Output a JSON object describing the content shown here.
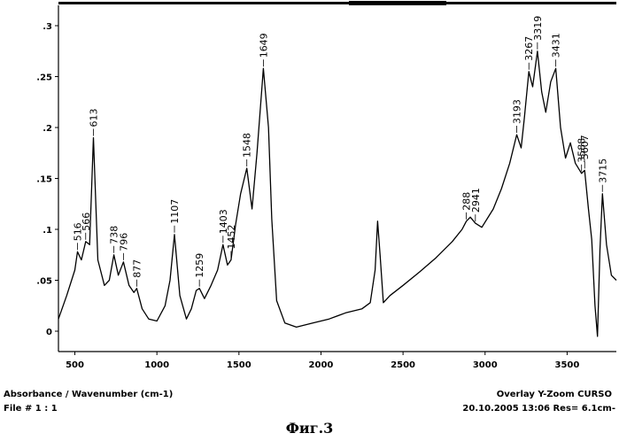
{
  "footer": {
    "axes_label": "Absorbance / Wavenumber (cm-1)",
    "file_label": "File # 1 : 1",
    "overlay_label": "Overlay Y-Zoom CURSO",
    "stamp_label": "20.10.2005  13:06  Res= 6.1cm-"
  },
  "caption": "Фиг.3",
  "chart_data": {
    "type": "line",
    "xlim": [
      400,
      3800
    ],
    "ylim": [
      -0.02,
      0.32
    ],
    "x_ticks": [
      500,
      1000,
      1500,
      2000,
      2500,
      3000,
      3500
    ],
    "x_tick_labels": [
      "500",
      "1000",
      "1500",
      "2000",
      "2500",
      "3000",
      "3500"
    ],
    "y_ticks": [
      0,
      0.05,
      0.1,
      0.15,
      0.2,
      0.25,
      0.3
    ],
    "y_tick_labels": [
      "0",
      ".05",
      ".1",
      ".15",
      ".2",
      ".25",
      ".3"
    ],
    "grid": false,
    "series": [
      {
        "x": [
          400,
          450,
          500,
          516,
          540,
          566,
          590,
          613,
          640,
          680,
          710,
          738,
          765,
          796,
          830,
          860,
          877,
          910,
          950,
          1000,
          1050,
          1080,
          1107,
          1140,
          1180,
          1210,
          1240,
          1259,
          1290,
          1330,
          1370,
          1403,
          1430,
          1452,
          1480,
          1510,
          1548,
          1580,
          1610,
          1649,
          1680,
          1700,
          1730,
          1780,
          1850,
          1950,
          2050,
          2150,
          2250,
          2300,
          2330,
          2345,
          2360,
          2380,
          2420,
          2500,
          2600,
          2700,
          2800,
          2860,
          2886,
          2910,
          2941,
          2980,
          3050,
          3100,
          3150,
          3193,
          3220,
          3240,
          3267,
          3290,
          3319,
          3345,
          3370,
          3400,
          3431,
          3460,
          3490,
          3520,
          3550,
          3588,
          3607,
          3630,
          3650,
          3670,
          3685,
          3700,
          3715,
          3740,
          3770,
          3800
        ],
        "y": [
          0.012,
          0.035,
          0.06,
          0.078,
          0.07,
          0.088,
          0.085,
          0.19,
          0.07,
          0.045,
          0.05,
          0.075,
          0.055,
          0.068,
          0.045,
          0.038,
          0.042,
          0.022,
          0.012,
          0.01,
          0.025,
          0.05,
          0.095,
          0.035,
          0.012,
          0.022,
          0.04,
          0.042,
          0.032,
          0.045,
          0.06,
          0.085,
          0.065,
          0.07,
          0.105,
          0.135,
          0.16,
          0.12,
          0.175,
          0.258,
          0.2,
          0.11,
          0.03,
          0.008,
          0.004,
          0.008,
          0.012,
          0.018,
          0.022,
          0.028,
          0.06,
          0.108,
          0.075,
          0.028,
          0.035,
          0.045,
          0.058,
          0.072,
          0.088,
          0.1,
          0.108,
          0.112,
          0.106,
          0.102,
          0.12,
          0.14,
          0.165,
          0.193,
          0.18,
          0.21,
          0.255,
          0.24,
          0.275,
          0.235,
          0.215,
          0.245,
          0.258,
          0.2,
          0.17,
          0.185,
          0.165,
          0.155,
          0.158,
          0.12,
          0.09,
          0.025,
          -0.005,
          0.08,
          0.135,
          0.085,
          0.055,
          0.05
        ]
      }
    ],
    "annotations": [
      {
        "x": 516,
        "y": 0.078,
        "label": "516"
      },
      {
        "x": 566,
        "y": 0.088,
        "label": "566"
      },
      {
        "x": 613,
        "y": 0.19,
        "label": "613"
      },
      {
        "x": 738,
        "y": 0.075,
        "label": "738"
      },
      {
        "x": 796,
        "y": 0.068,
        "label": "796"
      },
      {
        "x": 877,
        "y": 0.042,
        "label": "877"
      },
      {
        "x": 1107,
        "y": 0.095,
        "label": "1107"
      },
      {
        "x": 1259,
        "y": 0.042,
        "label": "1259"
      },
      {
        "x": 1403,
        "y": 0.085,
        "label": "1403"
      },
      {
        "x": 1452,
        "y": 0.07,
        "label": "1452"
      },
      {
        "x": 1548,
        "y": 0.16,
        "label": "1548"
      },
      {
        "x": 1649,
        "y": 0.258,
        "label": "1649"
      },
      {
        "x": 2886,
        "y": 0.108,
        "label": "288"
      },
      {
        "x": 2941,
        "y": 0.106,
        "label": "2941"
      },
      {
        "x": 3193,
        "y": 0.193,
        "label": "3193"
      },
      {
        "x": 3267,
        "y": 0.255,
        "label": "3267"
      },
      {
        "x": 3319,
        "y": 0.275,
        "label": "3319"
      },
      {
        "x": 3431,
        "y": 0.258,
        "label": "3431"
      },
      {
        "x": 3588,
        "y": 0.155,
        "label": "3588"
      },
      {
        "x": 3607,
        "y": 0.158,
        "label": "3607"
      },
      {
        "x": 3715,
        "y": 0.135,
        "label": "3715"
      }
    ]
  }
}
